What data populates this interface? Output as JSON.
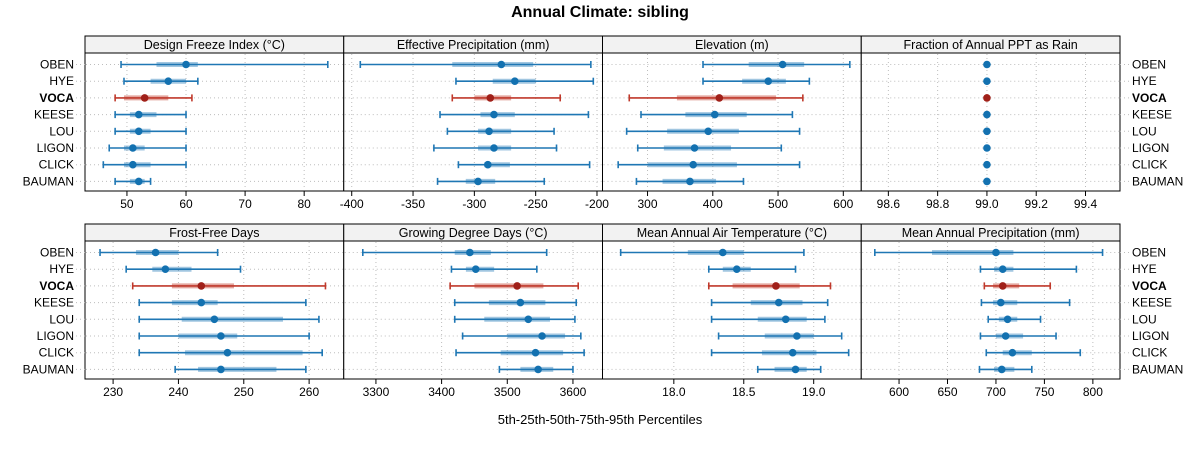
{
  "title": "Annual Climate: sibling",
  "caption": "5th-25th-50th-75th-95th Percentiles",
  "sites": [
    "OBEN",
    "HYE",
    "VOCA",
    "KEESE",
    "LOU",
    "LIGON",
    "CLICK",
    "BAUMAN"
  ],
  "highlight_site": "VOCA",
  "colors": {
    "normal_line": "#1f77b4",
    "normal_band": "rgba(31,119,180,0.42)",
    "normal_dot": "#1371b0",
    "highlight_line": "#c0392b",
    "highlight_band": "rgba(192,57,43,0.45)",
    "highlight_dot": "#a02019",
    "grid": "#bdbdbd",
    "panel_header_bg": "#f2f2f2",
    "panel_border": "#000000"
  },
  "chart_data": {
    "type": "dotplot",
    "statistic": "5th-25th-50th-75th-95th percentiles",
    "legend_position": "none",
    "grid": "dotted",
    "panels": [
      {
        "title": "Design Freeze Index (°C)",
        "xlim": [
          42.9,
          86.7
        ],
        "tick_values": [
          50,
          60,
          70,
          80
        ],
        "tick_labels": [
          "50",
          "60",
          "70",
          "80"
        ],
        "values": [
          [
            49,
            55,
            60,
            62,
            84
          ],
          [
            49.5,
            54,
            57,
            60,
            62
          ],
          [
            48,
            49.5,
            53,
            57,
            61
          ],
          [
            48,
            50.5,
            52,
            55,
            60
          ],
          [
            48,
            50.5,
            52,
            54,
            60
          ],
          [
            47,
            49.5,
            51,
            53,
            60
          ],
          [
            46,
            49.5,
            51,
            54,
            60
          ],
          [
            48,
            50.5,
            52,
            53,
            54
          ]
        ]
      },
      {
        "title": "Effective Precipitation (mm)",
        "xlim": [
          -406.5,
          -195.5
        ],
        "tick_values": [
          -400,
          -350,
          -300,
          -250,
          -200
        ],
        "tick_labels": [
          "-400",
          "-350",
          "-300",
          "-250",
          "-200"
        ],
        "values": [
          [
            -393,
            -318,
            -278,
            -252,
            -205
          ],
          [
            -315,
            -285,
            -267,
            -250,
            -203
          ],
          [
            -318,
            -300,
            -287,
            -270,
            -230
          ],
          [
            -328,
            -295,
            -284,
            -267,
            -207
          ],
          [
            -322,
            -297,
            -288,
            -270,
            -235
          ],
          [
            -333,
            -297,
            -284,
            -270,
            -233
          ],
          [
            -313,
            -292,
            -289,
            -271,
            -206
          ],
          [
            -330,
            -307,
            -297,
            -283,
            -243
          ]
        ]
      },
      {
        "title": "Elevation (m)",
        "xlim": [
          231,
          627.5
        ],
        "tick_values": [
          300,
          400,
          500,
          600
        ],
        "tick_labels": [
          "300",
          "400",
          "500",
          "600"
        ],
        "values": [
          [
            385,
            455,
            507,
            540,
            610
          ],
          [
            385,
            445,
            485,
            512,
            548
          ],
          [
            272,
            345,
            410,
            497,
            538
          ],
          [
            290,
            358,
            403,
            452,
            522
          ],
          [
            268,
            330,
            393,
            440,
            533
          ],
          [
            285,
            325,
            372,
            428,
            505
          ],
          [
            255,
            300,
            370,
            437,
            533
          ],
          [
            283,
            323,
            365,
            405,
            447
          ]
        ]
      },
      {
        "title": "Fraction of Annual PPT as Rain",
        "xlim": [
          98.49,
          99.54
        ],
        "tick_values": [
          98.6,
          98.8,
          99.0,
          99.2,
          99.4
        ],
        "tick_labels": [
          "98.6",
          "98.8",
          "99.0",
          "99.2",
          "99.4"
        ],
        "values": [
          [
            99,
            99,
            99,
            99,
            99
          ],
          [
            99,
            99,
            99,
            99,
            99
          ],
          [
            99,
            99,
            99,
            99,
            99
          ],
          [
            99,
            99,
            99,
            99,
            99
          ],
          [
            99,
            99,
            99,
            99,
            99
          ],
          [
            99,
            99,
            99,
            99,
            99
          ],
          [
            99,
            99,
            99,
            99,
            99
          ],
          [
            99,
            99,
            99,
            99,
            99
          ]
        ]
      },
      {
        "title": "Frost-Free Days",
        "xlim": [
          225.7,
          265.3
        ],
        "tick_values": [
          230,
          240,
          250,
          260
        ],
        "tick_labels": [
          "230",
          "240",
          "250",
          "260"
        ],
        "values": [
          [
            228,
            233.5,
            236.5,
            240,
            246
          ],
          [
            232,
            236,
            238,
            242,
            249.5
          ],
          [
            233,
            239,
            243.5,
            248.5,
            262.5
          ],
          [
            234,
            239,
            243.5,
            246,
            259.5
          ],
          [
            234,
            240.5,
            245.5,
            256,
            261.5
          ],
          [
            234,
            240,
            246.5,
            249,
            260
          ],
          [
            234,
            241,
            247.5,
            259,
            262
          ],
          [
            239.5,
            243,
            246.5,
            255,
            259.5
          ]
        ]
      },
      {
        "title": "Growing Degree Days (°C)",
        "xlim": [
          3251,
          3645
        ],
        "tick_values": [
          3300,
          3400,
          3500,
          3600
        ],
        "tick_labels": [
          "3300",
          "3400",
          "3500",
          "3600"
        ],
        "values": [
          [
            3280,
            3420,
            3443,
            3475,
            3560
          ],
          [
            3415,
            3437,
            3452,
            3480,
            3545
          ],
          [
            3413,
            3450,
            3515,
            3555,
            3608
          ],
          [
            3420,
            3472,
            3520,
            3558,
            3605
          ],
          [
            3420,
            3465,
            3532,
            3565,
            3603
          ],
          [
            3432,
            3500,
            3553,
            3588,
            3612
          ],
          [
            3422,
            3490,
            3543,
            3585,
            3617
          ],
          [
            3488,
            3520,
            3547,
            3570,
            3600
          ]
        ]
      },
      {
        "title": "Mean Annual Air Temperature (°C)",
        "xlim": [
          17.49,
          19.34
        ],
        "tick_values": [
          18.0,
          18.5,
          19.0
        ],
        "tick_labels": [
          "18.0",
          "18.5",
          "19.0"
        ],
        "values": [
          [
            17.62,
            18.1,
            18.35,
            18.5,
            18.93
          ],
          [
            18.25,
            18.35,
            18.45,
            18.55,
            18.87
          ],
          [
            18.25,
            18.42,
            18.73,
            18.9,
            19.12
          ],
          [
            18.27,
            18.55,
            18.75,
            18.92,
            19.1
          ],
          [
            18.27,
            18.6,
            18.8,
            18.95,
            19.08
          ],
          [
            18.32,
            18.65,
            18.88,
            19.0,
            19.2
          ],
          [
            18.27,
            18.63,
            18.85,
            19.02,
            19.25
          ],
          [
            18.6,
            18.72,
            18.87,
            18.95,
            19.05
          ]
        ]
      },
      {
        "title": "Mean Annual Precipitation (mm)",
        "xlim": [
          561,
          828
        ],
        "tick_values": [
          600,
          650,
          700,
          750,
          800
        ],
        "tick_labels": [
          "600",
          "650",
          "700",
          "750",
          "800"
        ],
        "values": [
          [
            575,
            634,
            700,
            718,
            810
          ],
          [
            684,
            698,
            707,
            718,
            783
          ],
          [
            688,
            697,
            707,
            724,
            756
          ],
          [
            685,
            697,
            705,
            722,
            776
          ],
          [
            692,
            703,
            712,
            722,
            746
          ],
          [
            684,
            700,
            710,
            728,
            762
          ],
          [
            690,
            707,
            717,
            737,
            787
          ],
          [
            683,
            698,
            706,
            719,
            737
          ]
        ]
      }
    ]
  }
}
